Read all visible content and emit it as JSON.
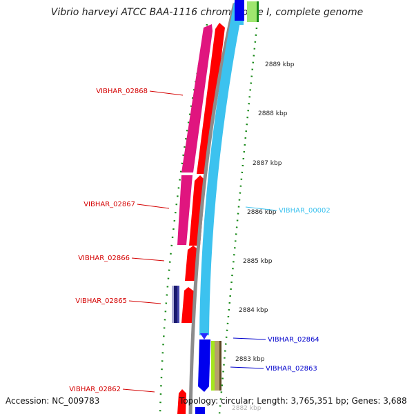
{
  "title": "Vibrio harveyi ATCC BAA-1116 chromosome I, complete genome",
  "accession": "Accession: NC_009783",
  "topology": "Topology: circular; Length: 3,765,351 bp; Genes: 3,688",
  "colors": {
    "forward_gene": "#d40000",
    "reverse_gene": "#0000cc",
    "cds_forward": "#ff0000",
    "cds_forward_alt": "#e0157f",
    "rna": "#3cc2ef",
    "backbone": "#8c8c8c",
    "tick": "#1a8a1a"
  },
  "ruler": [
    {
      "label": "2889 kbp"
    },
    {
      "label": "2888 kbp"
    },
    {
      "label": "2887 kbp"
    },
    {
      "label": "2886 kbp"
    },
    {
      "label": "2885 kbp"
    },
    {
      "label": "2884 kbp"
    },
    {
      "label": "2883 kbp"
    },
    {
      "label": "2882 kbp"
    }
  ],
  "genes": [
    {
      "name": "VIBHAR_02868",
      "strand": "forward"
    },
    {
      "name": "VIBHAR_02867",
      "strand": "forward"
    },
    {
      "name": "VIBHAR_02866",
      "strand": "forward"
    },
    {
      "name": "VIBHAR_02865",
      "strand": "forward"
    },
    {
      "name": "VIBHAR_02862",
      "strand": "forward"
    },
    {
      "name": "VIBHAR_00002",
      "strand": "rna"
    },
    {
      "name": "VIBHAR_02864",
      "strand": "reverse"
    },
    {
      "name": "VIBHAR_02863",
      "strand": "reverse"
    }
  ]
}
